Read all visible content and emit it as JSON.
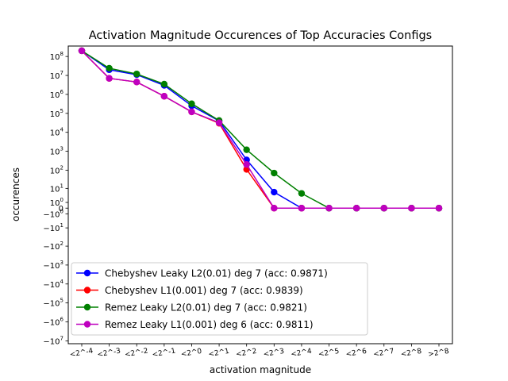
{
  "chart_data": {
    "type": "line",
    "title": "Activation Magnitude Occurences of Top Accuracies Configs",
    "xlabel": "activation magnitude",
    "ylabel": "occurences",
    "yscale": "symlog",
    "legend_position": "lower-left",
    "grid": false,
    "categories": [
      "<2^-4",
      "<2^-3",
      "<2^-2",
      "<2^-1",
      "<2^0",
      "<2^1",
      "<2^2",
      "<2^3",
      "<2^4",
      "<2^5",
      "<2^6",
      "<2^7",
      "<2^8",
      ">2^8"
    ],
    "yticks": [
      {
        "label": "10^8",
        "base": "10",
        "exp": "8",
        "value": 100000000
      },
      {
        "label": "10^7",
        "base": "10",
        "exp": "7",
        "value": 10000000
      },
      {
        "label": "10^6",
        "base": "10",
        "exp": "6",
        "value": 1000000
      },
      {
        "label": "10^5",
        "base": "10",
        "exp": "5",
        "value": 100000
      },
      {
        "label": "10^4",
        "base": "10",
        "exp": "4",
        "value": 10000
      },
      {
        "label": "10^3",
        "base": "10",
        "exp": "3",
        "value": 1000
      },
      {
        "label": "10^2",
        "base": "10",
        "exp": "2",
        "value": 100
      },
      {
        "label": "10^1",
        "base": "10",
        "exp": "1",
        "value": 10
      },
      {
        "label": "10^0",
        "base": "10",
        "exp": "0",
        "value": 1
      },
      {
        "label": "0",
        "base": "0",
        "exp": "",
        "value": 0
      },
      {
        "label": "-10^0",
        "base": "−10",
        "exp": "0",
        "value": -1
      },
      {
        "label": "-10^1",
        "base": "−10",
        "exp": "1",
        "value": -10
      },
      {
        "label": "-10^2",
        "base": "−10",
        "exp": "2",
        "value": -100
      },
      {
        "label": "-10^3",
        "base": "−10",
        "exp": "3",
        "value": -1000
      },
      {
        "label": "-10^4",
        "base": "−10",
        "exp": "4",
        "value": -10000
      },
      {
        "label": "-10^5",
        "base": "−10",
        "exp": "5",
        "value": -100000
      },
      {
        "label": "-10^6",
        "base": "−10",
        "exp": "6",
        "value": -1000000
      },
      {
        "label": "-10^7",
        "base": "−10",
        "exp": "7",
        "value": -10000000
      }
    ],
    "series": [
      {
        "name": "Chebyshev Leaky L2(0.01) deg 7 (acc: 0.9871)",
        "color": "#0000ff",
        "values": [
          200000000,
          20000000,
          11000000,
          3000000,
          250000,
          40000,
          350,
          6,
          0,
          0,
          0,
          0,
          0,
          0
        ]
      },
      {
        "name": "Chebyshev L1(0.001) deg 7 (acc: 0.9839)",
        "color": "#ff0000",
        "values": [
          200000000,
          7000000,
          4500000,
          800000,
          120000,
          30000,
          110,
          0,
          0,
          0,
          0,
          0,
          0,
          0
        ]
      },
      {
        "name": "Remez Leaky L2(0.01) deg 7 (acc: 0.9821)",
        "color": "#008000",
        "values": [
          200000000,
          24000000,
          12000000,
          3500000,
          320000,
          42000,
          1200,
          70,
          5,
          0,
          0,
          0,
          0,
          0
        ]
      },
      {
        "name": "Remez Leaky L1(0.001) deg 6 (acc: 0.9811)",
        "color": "#bf00bf",
        "values": [
          200000000,
          7000000,
          4500000,
          800000,
          120000,
          32000,
          200,
          0,
          0,
          0,
          0,
          0,
          0,
          0
        ]
      }
    ]
  }
}
